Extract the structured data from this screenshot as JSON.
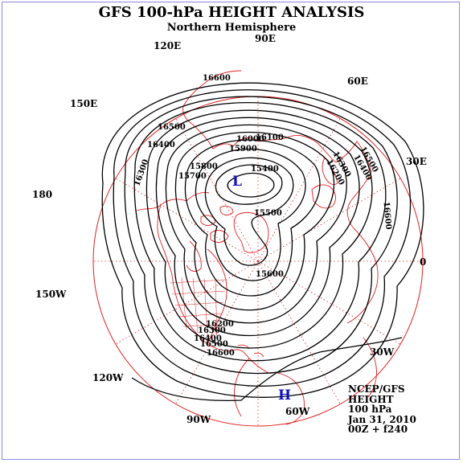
{
  "title": "GFS 100-hPa HEIGHT ANALYSIS",
  "subtitle": "Northern Hemisphere",
  "longitude_labels": [
    "90E",
    "60E",
    "30E",
    "0",
    "30W",
    "60W",
    "90W",
    "120W",
    "150W",
    "180",
    "150E",
    "120E"
  ],
  "contour_labels": [
    "15400",
    "15500",
    "15600",
    "15700",
    "15800",
    "15900",
    "16000",
    "16100",
    "16200",
    "16300",
    "16400",
    "16500",
    "16600"
  ],
  "pressure_systems": [
    {
      "symbol": "L"
    },
    {
      "symbol": "H"
    }
  ],
  "info": {
    "source": "NCEP/GFS",
    "field": "HEIGHT",
    "level": "100 hPa",
    "date": "Jan 31, 2010",
    "run": "00Z + f240"
  },
  "colors": {
    "map_lines": "#e02020",
    "contours": "#000000",
    "symbols": "#1010c0",
    "frame": "#8a8ae0"
  }
}
